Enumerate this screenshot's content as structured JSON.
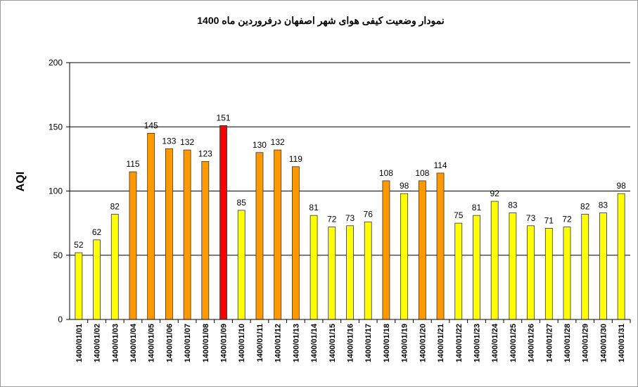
{
  "chart_data": {
    "type": "bar",
    "title": "نمودار وضعیت کیفی هوای شهر اصفهان درفروردین ماه 1400",
    "xlabel": "",
    "ylabel": "AQI",
    "ylim": [
      0,
      200
    ],
    "yticks": [
      0,
      50,
      100,
      150,
      200
    ],
    "grid": true,
    "categories": [
      "1400/01/01",
      "1400/01/02",
      "1400/01/03",
      "1400/01/04",
      "1400/01/05",
      "1400/01/06",
      "1400/01/07",
      "1400/01/08",
      "1400/01/09",
      "1400/01/10",
      "1400/01/11",
      "1400/01/12",
      "1400/01/13",
      "1400/01/14",
      "1400/01/15",
      "1400/01/16",
      "1400/01/17",
      "1400/01/18",
      "1400/01/19",
      "1400/01/20",
      "1400/01/21",
      "1400/01/22",
      "1400/01/23",
      "1400/01/24",
      "1400/01/25",
      "1400/01/26",
      "1400/01/27",
      "1400/01/28",
      "1400/01/29",
      "1400/01/30",
      "1400/01/31"
    ],
    "values": [
      52,
      62,
      82,
      115,
      145,
      133,
      132,
      123,
      151,
      85,
      130,
      132,
      119,
      81,
      72,
      73,
      76,
      108,
      98,
      108,
      114,
      75,
      81,
      92,
      83,
      73,
      71,
      72,
      82,
      83,
      98
    ],
    "colors": {
      "good": "#ffff00",
      "moderate": "#ff9900",
      "unhealthy": "#ff0000",
      "bar_stroke": "#333333"
    },
    "color_thresholds": {
      "orange_above": 100,
      "red_above": 150
    }
  }
}
